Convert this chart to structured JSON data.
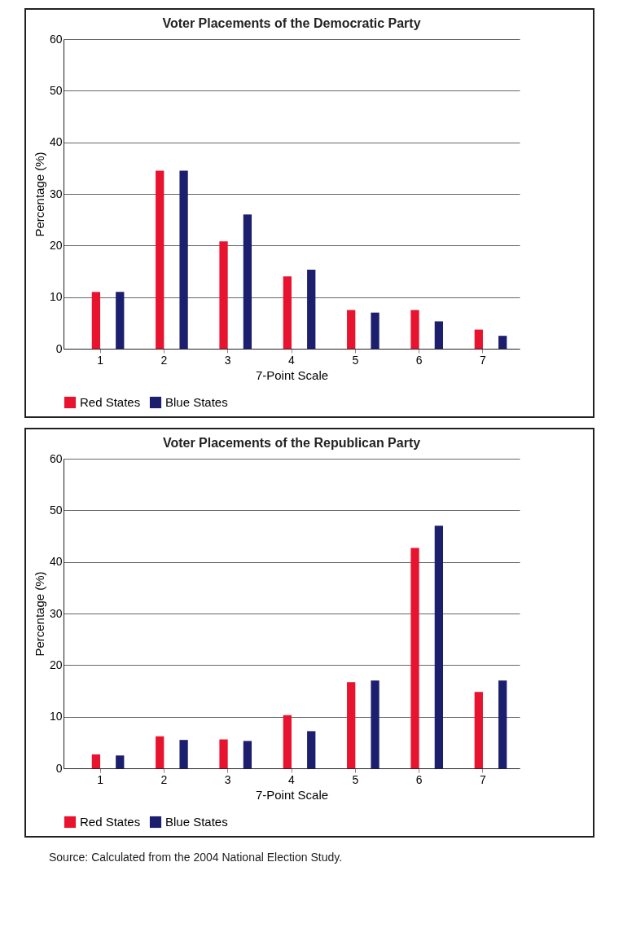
{
  "chart_data": [
    {
      "type": "bar",
      "title": "Voter Placements of the Democratic Party",
      "xlabel": "7-Point Scale",
      "ylabel": "Percentage (%)",
      "categories": [
        "1",
        "2",
        "3",
        "4",
        "5",
        "6",
        "7"
      ],
      "series": [
        {
          "name": "Red States",
          "color": "#e8132e",
          "values": [
            11,
            34.5,
            20.8,
            14,
            7.5,
            7.5,
            3.7
          ]
        },
        {
          "name": "Blue States",
          "color": "#1c1f6e",
          "values": [
            11,
            34.5,
            26,
            15.3,
            7,
            5.3,
            2.5
          ]
        }
      ],
      "ylim": [
        0,
        60
      ],
      "yticks": [
        0,
        10,
        20,
        30,
        40,
        50,
        60
      ],
      "grid": "y",
      "legend": "bottom"
    },
    {
      "type": "bar",
      "title": "Voter Placements of the Republican Party",
      "xlabel": "7-Point Scale",
      "ylabel": "Percentage (%)",
      "categories": [
        "1",
        "2",
        "3",
        "4",
        "5",
        "6",
        "7"
      ],
      "series": [
        {
          "name": "Red States",
          "color": "#e8132e",
          "values": [
            2.7,
            6.2,
            5.6,
            10.3,
            16.7,
            42.7,
            14.8
          ]
        },
        {
          "name": "Blue States",
          "color": "#1c1f6e",
          "values": [
            2.5,
            5.5,
            5.3,
            7.2,
            17,
            47,
            17
          ]
        }
      ],
      "ylim": [
        0,
        60
      ],
      "yticks": [
        0,
        10,
        20,
        30,
        40,
        50,
        60
      ],
      "grid": "y",
      "legend": "bottom",
      "annotations": [
        "Source: Calculated from the 2004 National Election Study."
      ]
    }
  ]
}
